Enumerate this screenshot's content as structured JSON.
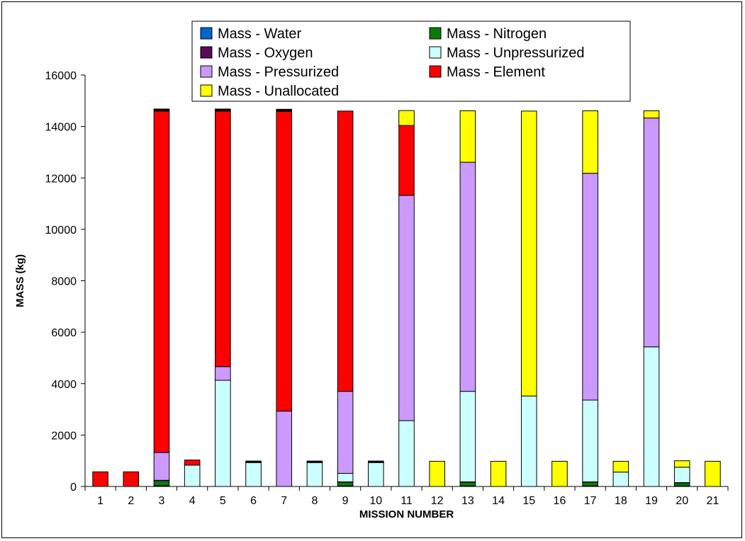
{
  "chart_data": {
    "type": "bar",
    "stacked": true,
    "title": "",
    "xlabel": "MISSION NUMBER",
    "ylabel": "MASS (kg)",
    "ylim": [
      0,
      16000
    ],
    "yticks": [
      0,
      2000,
      4000,
      6000,
      8000,
      10000,
      12000,
      14000,
      16000
    ],
    "grid": false,
    "legend_position": "top",
    "categories": [
      "1",
      "2",
      "3",
      "4",
      "5",
      "6",
      "7",
      "8",
      "9",
      "10",
      "11",
      "12",
      "13",
      "14",
      "15",
      "16",
      "17",
      "18",
      "19",
      "20",
      "21"
    ],
    "series": [
      {
        "name": "Mass - Water",
        "color": "#1f6fd1",
        "values": [
          0,
          0,
          30,
          0,
          0,
          0,
          0,
          0,
          20,
          0,
          0,
          0,
          20,
          0,
          0,
          0,
          20,
          0,
          0,
          20,
          0
        ]
      },
      {
        "name": "Mass - Nitrogen",
        "color": "#0b7a0b",
        "values": [
          0,
          0,
          200,
          0,
          0,
          0,
          0,
          0,
          150,
          0,
          0,
          0,
          150,
          0,
          0,
          0,
          150,
          0,
          0,
          120,
          0
        ]
      },
      {
        "name": "Mass - Oxygen",
        "color": "#5a0a5a",
        "values": [
          0,
          0,
          10,
          0,
          0,
          0,
          0,
          0,
          10,
          0,
          0,
          0,
          10,
          0,
          0,
          0,
          10,
          0,
          0,
          10,
          0
        ]
      },
      {
        "name": "Mass - Unpressurized",
        "color": "#ccffff",
        "values": [
          0,
          0,
          0,
          830,
          4130,
          930,
          0,
          930,
          330,
          930,
          2560,
          0,
          3520,
          0,
          3520,
          0,
          3180,
          560,
          5430,
          600,
          0
        ]
      },
      {
        "name": "Mass - Pressurized",
        "color": "#cc99ff",
        "values": [
          0,
          0,
          1080,
          0,
          530,
          0,
          2930,
          0,
          3190,
          0,
          8760,
          0,
          8910,
          0,
          0,
          0,
          8820,
          0,
          8900,
          0,
          0
        ]
      },
      {
        "name": "Mass - Element",
        "color": "#ff0000",
        "values": [
          570,
          570,
          13280,
          200,
          9940,
          0,
          11660,
          0,
          10900,
          0,
          2720,
          0,
          0,
          0,
          0,
          0,
          0,
          0,
          0,
          0,
          0
        ]
      },
      {
        "name": "Mass - Unallocated",
        "color": "#ffff00",
        "values": [
          0,
          0,
          0,
          0,
          0,
          0,
          0,
          0,
          0,
          0,
          580,
          980,
          2000,
          980,
          11080,
          980,
          2430,
          420,
          280,
          250,
          980
        ]
      }
    ],
    "caps": {
      "color": "#000000",
      "values": [
        0,
        0,
        80,
        0,
        80,
        60,
        80,
        60,
        0,
        60,
        0,
        0,
        0,
        0,
        0,
        0,
        0,
        0,
        0,
        0,
        0
      ]
    },
    "legend_colors": {
      "Mass - Water": "#0066cc"
    }
  }
}
